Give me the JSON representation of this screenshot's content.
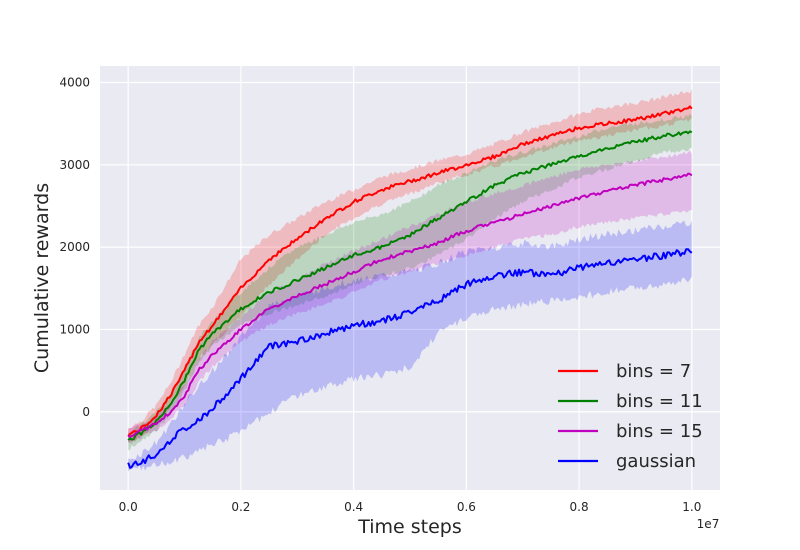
{
  "chart_data": {
    "type": "line",
    "title": "",
    "xlabel": "Time steps",
    "ylabel": "Cumulative rewards",
    "x_offset_label": "1e7",
    "xlim": [
      -0.05,
      1.05
    ],
    "ylim": [
      -950,
      4200
    ],
    "x_ticks": [
      0.0,
      0.2,
      0.4,
      0.6,
      0.8,
      1.0
    ],
    "x_tick_labels": [
      "0.0",
      "0.2",
      "0.4",
      "0.6",
      "0.8",
      "1.0"
    ],
    "y_ticks": [
      0,
      1000,
      2000,
      3000,
      4000
    ],
    "y_tick_labels": [
      "0",
      "1000",
      "2000",
      "3000",
      "4000"
    ],
    "grid": true,
    "background": "#eaeaf2",
    "legend_position": "bottom-right",
    "x": [
      0.0,
      0.025,
      0.05,
      0.075,
      0.1,
      0.125,
      0.15,
      0.2,
      0.25,
      0.3,
      0.35,
      0.4,
      0.45,
      0.5,
      0.55,
      0.6,
      0.65,
      0.7,
      0.75,
      0.8,
      0.85,
      0.9,
      0.95,
      1.0
    ],
    "series": [
      {
        "name": "bins = 7",
        "color": "#ff0000",
        "values": [
          -280,
          -200,
          -40,
          200,
          500,
          850,
          1050,
          1500,
          1850,
          2100,
          2350,
          2550,
          2700,
          2800,
          2900,
          3000,
          3100,
          3250,
          3350,
          3450,
          3500,
          3550,
          3620,
          3700
        ],
        "lower": [
          -380,
          -300,
          -140,
          50,
          320,
          650,
          830,
          1150,
          1550,
          1850,
          2150,
          2350,
          2530,
          2650,
          2780,
          2880,
          2980,
          3100,
          3200,
          3300,
          3350,
          3420,
          3480,
          3550
        ],
        "upper": [
          -200,
          -100,
          80,
          350,
          700,
          1050,
          1280,
          1850,
          2150,
          2350,
          2550,
          2700,
          2850,
          2950,
          3050,
          3130,
          3250,
          3400,
          3500,
          3620,
          3700,
          3750,
          3820,
          3900
        ]
      },
      {
        "name": "bins = 11",
        "color": "#008000",
        "values": [
          -350,
          -250,
          -120,
          100,
          380,
          750,
          950,
          1250,
          1450,
          1600,
          1750,
          1900,
          2000,
          2150,
          2350,
          2550,
          2750,
          2900,
          3000,
          3100,
          3200,
          3280,
          3350,
          3400
        ],
        "lower": [
          -450,
          -350,
          -230,
          -20,
          250,
          600,
          800,
          1050,
          1200,
          1300,
          1400,
          1550,
          1650,
          1750,
          1900,
          2100,
          2350,
          2550,
          2700,
          2850,
          2950,
          3050,
          3150,
          3200
        ],
        "upper": [
          -250,
          -150,
          0,
          230,
          520,
          900,
          1100,
          1450,
          1750,
          2000,
          2150,
          2300,
          2400,
          2550,
          2750,
          2900,
          3050,
          3150,
          3250,
          3350,
          3450,
          3500,
          3550,
          3600
        ]
      },
      {
        "name": "bins = 15",
        "color": "#bf00bf",
        "values": [
          -300,
          -220,
          -150,
          0,
          200,
          500,
          700,
          1000,
          1250,
          1400,
          1550,
          1700,
          1850,
          1950,
          2050,
          2200,
          2300,
          2400,
          2500,
          2600,
          2680,
          2750,
          2820,
          2880
        ],
        "lower": [
          -380,
          -300,
          -230,
          -100,
          80,
          350,
          550,
          850,
          1050,
          1200,
          1300,
          1450,
          1600,
          1700,
          1800,
          1900,
          2000,
          2100,
          2150,
          2250,
          2300,
          2350,
          2400,
          2450
        ],
        "upper": [
          -220,
          -140,
          -60,
          100,
          320,
          650,
          850,
          1150,
          1450,
          1600,
          1800,
          1950,
          2100,
          2250,
          2400,
          2550,
          2650,
          2750,
          2850,
          2950,
          3000,
          3050,
          3100,
          3150
        ]
      },
      {
        "name": "gaussian",
        "color": "#0000ff",
        "values": [
          -650,
          -600,
          -520,
          -350,
          -200,
          -100,
          50,
          400,
          800,
          850,
          950,
          1050,
          1100,
          1200,
          1350,
          1550,
          1650,
          1700,
          1650,
          1750,
          1800,
          1850,
          1900,
          1950
        ],
        "lower": [
          -700,
          -680,
          -650,
          -600,
          -550,
          -480,
          -400,
          -250,
          0,
          200,
          300,
          400,
          450,
          550,
          950,
          1150,
          1250,
          1300,
          1350,
          1400,
          1450,
          1500,
          1550,
          1600
        ],
        "upper": [
          -600,
          -500,
          -380,
          -150,
          100,
          300,
          500,
          900,
          1300,
          1400,
          1500,
          1600,
          1650,
          1700,
          1800,
          1950,
          2000,
          2050,
          2000,
          2100,
          2150,
          2200,
          2250,
          2300
        ]
      }
    ]
  }
}
